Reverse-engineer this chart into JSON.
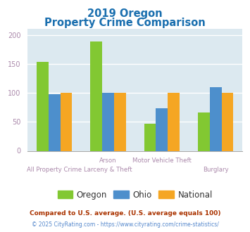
{
  "title_line1": "2019 Oregon",
  "title_line2": "Property Crime Comparison",
  "title_color": "#1a6faf",
  "category_labels_top": [
    "",
    "Arson",
    "Motor Vehicle Theft",
    ""
  ],
  "category_labels_bottom": [
    "All Property Crime",
    "Larceny & Theft",
    "",
    "Burglary"
  ],
  "oregon_values": [
    153,
    188,
    47,
    66
  ],
  "ohio_values": [
    98,
    100,
    73,
    110
  ],
  "national_values": [
    100,
    100,
    100,
    100
  ],
  "oregon_color": "#82c832",
  "ohio_color": "#4d8fcc",
  "national_color": "#f5a623",
  "ylim": [
    0,
    210
  ],
  "yticks": [
    0,
    50,
    100,
    150,
    200
  ],
  "plot_bg_color": "#dce9f0",
  "fig_bg_color": "#ffffff",
  "grid_color": "#ffffff",
  "legend_labels": [
    "Oregon",
    "Ohio",
    "National"
  ],
  "footnote1": "Compared to U.S. average. (U.S. average equals 100)",
  "footnote2": "© 2025 CityRating.com - https://www.cityrating.com/crime-statistics/",
  "footnote1_color": "#aa3300",
  "footnote2_color": "#5588cc",
  "tick_color": "#aa88aa",
  "legend_text_color": "#333333"
}
